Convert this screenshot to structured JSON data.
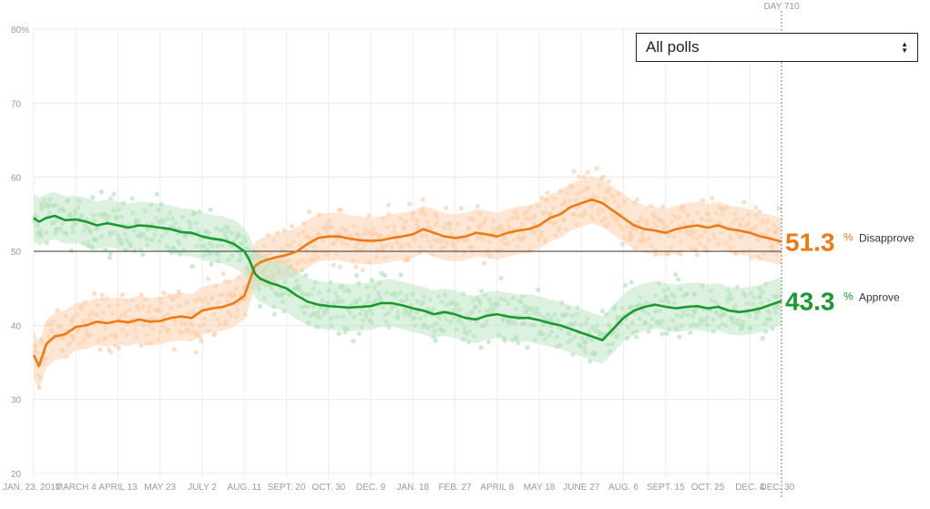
{
  "controls": {
    "poll_filter": {
      "selected": "All polls",
      "icon": "up-down-arrows-icon"
    }
  },
  "colors": {
    "approve": "#1a9a2e",
    "disapprove": "#f07a12",
    "approve_band": "#bfe6c4",
    "disapprove_band": "#fbd3b0",
    "approve_dots": "#9fdcaa",
    "disapprove_dots": "#fbc59a"
  },
  "chart_data": {
    "type": "line",
    "title": "",
    "xlabel": "",
    "ylabel": "",
    "ylim": [
      20,
      80
    ],
    "y_ticks": [
      20,
      30,
      40,
      50,
      60,
      70,
      80
    ],
    "y_tick_labels": [
      "20",
      "30",
      "40",
      "50",
      "60",
      "70",
      "80%"
    ],
    "x_range_days": [
      0,
      710
    ],
    "x_ticks": [
      {
        "day": 0,
        "label": "JAN. 23, 2017"
      },
      {
        "day": 40,
        "label": "MARCH 4"
      },
      {
        "day": 80,
        "label": "APRIL 13"
      },
      {
        "day": 120,
        "label": "MAY 23"
      },
      {
        "day": 160,
        "label": "JULY 2"
      },
      {
        "day": 200,
        "label": "AUG. 11"
      },
      {
        "day": 240,
        "label": "SEPT. 20"
      },
      {
        "day": 280,
        "label": "OCT. 30"
      },
      {
        "day": 320,
        "label": "DEC. 9"
      },
      {
        "day": 360,
        "label": "JAN. 18"
      },
      {
        "day": 400,
        "label": "FEB. 27"
      },
      {
        "day": 440,
        "label": "APRIL 8"
      },
      {
        "day": 480,
        "label": "MAY 18"
      },
      {
        "day": 520,
        "label": "JUNE 27"
      },
      {
        "day": 560,
        "label": "AUG. 6"
      },
      {
        "day": 600,
        "label": "SEPT. 15"
      },
      {
        "day": 640,
        "label": "OCT. 25"
      },
      {
        "day": 680,
        "label": "DEC. 4"
      },
      {
        "day": 706,
        "label": "DEC. 30"
      }
    ],
    "reference_line": 50,
    "current_day_label": "DAY 710",
    "current_day": 710,
    "series": [
      {
        "name": "Disapprove",
        "current_value": "51.3",
        "x": [
          0,
          5,
          12,
          20,
          30,
          40,
          50,
          60,
          70,
          80,
          90,
          100,
          110,
          120,
          130,
          140,
          150,
          160,
          170,
          180,
          190,
          200,
          205,
          210,
          215,
          220,
          225,
          230,
          240,
          250,
          260,
          270,
          280,
          290,
          300,
          310,
          320,
          330,
          340,
          350,
          360,
          370,
          380,
          390,
          400,
          410,
          420,
          430,
          440,
          450,
          460,
          470,
          480,
          490,
          500,
          510,
          520,
          530,
          540,
          550,
          560,
          570,
          580,
          590,
          600,
          610,
          620,
          630,
          640,
          650,
          660,
          670,
          680,
          690,
          700,
          710
        ],
        "values": [
          36.0,
          34.5,
          37.5,
          38.5,
          38.8,
          39.8,
          40.0,
          40.5,
          40.3,
          40.6,
          40.4,
          40.8,
          40.5,
          40.6,
          41.0,
          41.2,
          41.0,
          42.0,
          42.3,
          42.5,
          43.0,
          44.0,
          46.0,
          48.0,
          48.5,
          48.8,
          49.0,
          49.2,
          49.5,
          50.0,
          51.0,
          51.8,
          52.0,
          52.0,
          51.7,
          51.5,
          51.4,
          51.5,
          51.8,
          52.0,
          52.3,
          53.0,
          52.5,
          52.0,
          51.8,
          52.0,
          52.5,
          52.3,
          52.0,
          52.5,
          52.8,
          53.0,
          53.5,
          54.5,
          55.0,
          56.0,
          56.5,
          57.0,
          56.5,
          55.5,
          54.5,
          53.5,
          53.0,
          52.8,
          52.5,
          53.0,
          53.3,
          53.5,
          53.2,
          53.5,
          53.0,
          52.8,
          52.5,
          52.0,
          51.7,
          51.3
        ],
        "band_half_width": 3.2
      },
      {
        "name": "Approve",
        "current_value": "43.3",
        "x": [
          0,
          5,
          12,
          20,
          30,
          40,
          50,
          60,
          70,
          80,
          90,
          100,
          110,
          120,
          130,
          140,
          150,
          160,
          170,
          180,
          190,
          200,
          205,
          210,
          215,
          220,
          225,
          230,
          240,
          250,
          260,
          270,
          280,
          290,
          300,
          310,
          320,
          330,
          340,
          350,
          360,
          370,
          380,
          390,
          400,
          410,
          420,
          430,
          440,
          450,
          460,
          470,
          480,
          490,
          500,
          510,
          520,
          530,
          540,
          550,
          560,
          570,
          580,
          590,
          600,
          610,
          620,
          630,
          640,
          650,
          660,
          670,
          680,
          690,
          700,
          710
        ],
        "values": [
          54.5,
          54.0,
          54.5,
          54.8,
          54.2,
          54.3,
          54.0,
          53.5,
          53.8,
          53.5,
          53.2,
          53.5,
          53.4,
          53.2,
          53.0,
          52.6,
          52.5,
          52.0,
          51.7,
          51.5,
          51.0,
          50.0,
          48.8,
          47.0,
          46.3,
          46.0,
          45.7,
          45.5,
          45.0,
          44.0,
          43.2,
          42.8,
          42.6,
          42.5,
          42.4,
          42.5,
          42.6,
          43.0,
          43.0,
          42.7,
          42.3,
          42.0,
          41.5,
          41.8,
          41.5,
          41.0,
          40.8,
          41.3,
          41.5,
          41.2,
          41.0,
          41.0,
          40.7,
          40.3,
          40.0,
          39.5,
          39.0,
          38.5,
          38.0,
          39.5,
          41.0,
          42.0,
          42.5,
          42.8,
          42.5,
          42.3,
          42.5,
          42.6,
          42.3,
          42.5,
          42.0,
          41.8,
          42.0,
          42.3,
          42.8,
          43.3
        ],
        "band_half_width": 3.2
      }
    ]
  }
}
